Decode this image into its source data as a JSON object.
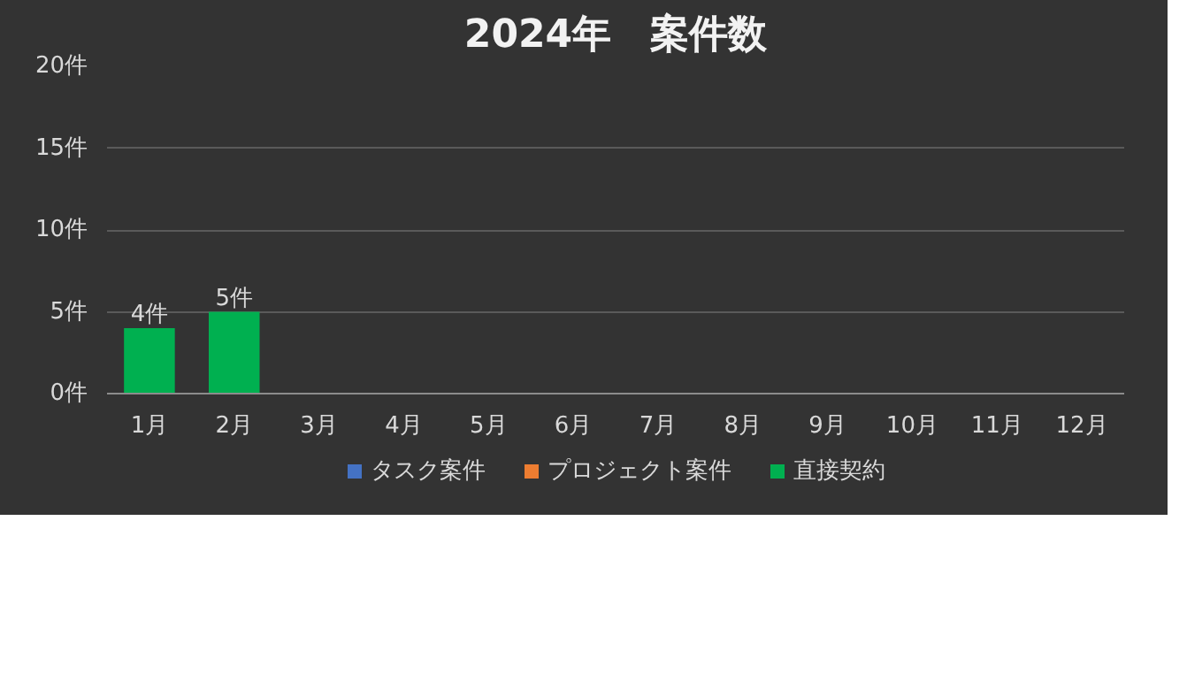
{
  "chart_data": {
    "type": "bar",
    "title": "2024年　案件数",
    "stacked": true,
    "categories": [
      "1月",
      "2月",
      "3月",
      "4月",
      "5月",
      "6月",
      "7月",
      "8月",
      "9月",
      "10月",
      "11月",
      "12月"
    ],
    "series": [
      {
        "name": "タスク案件",
        "color": "#4472c4",
        "values": [
          null,
          null,
          null,
          null,
          null,
          null,
          null,
          null,
          null,
          null,
          null,
          null
        ]
      },
      {
        "name": "プロジェクト案件",
        "color": "#ed7d31",
        "values": [
          null,
          null,
          null,
          null,
          null,
          null,
          null,
          null,
          null,
          null,
          null,
          null
        ]
      },
      {
        "name": "直接契約",
        "color": "#00b050",
        "values": [
          4,
          5,
          null,
          null,
          null,
          null,
          null,
          null,
          null,
          null,
          null,
          null
        ],
        "value_labels": [
          "4件",
          "5件",
          null,
          null,
          null,
          null,
          null,
          null,
          null,
          null,
          null,
          null
        ]
      }
    ],
    "ylim": [
      0,
      20
    ],
    "yticks": [
      {
        "value": 0,
        "label": "0件"
      },
      {
        "value": 5,
        "label": "5件"
      },
      {
        "value": 10,
        "label": "10件"
      },
      {
        "value": 15,
        "label": "15件"
      },
      {
        "value": 20,
        "label": "20件"
      }
    ],
    "grid": "y",
    "legend": "bottom"
  }
}
